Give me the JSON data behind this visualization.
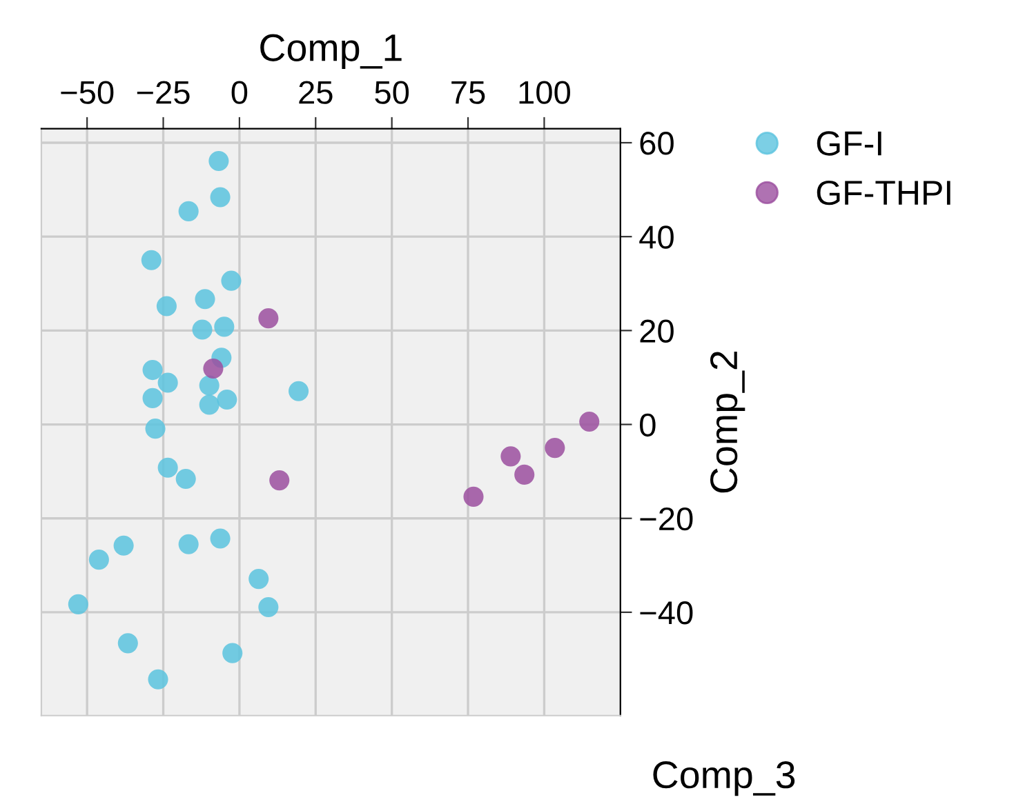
{
  "chart_data": {
    "type": "scatter",
    "xlabel": "Comp_1",
    "ylabel": "Comp_2",
    "annotations": [
      "Comp_3"
    ],
    "xlim": [
      -65,
      125
    ],
    "ylim": [
      -62,
      63
    ],
    "xticks": [
      -50,
      -25,
      0,
      25,
      50,
      75,
      100
    ],
    "yticks": [
      -40,
      -20,
      0,
      20,
      40,
      60
    ],
    "grid": true,
    "legend": "top right",
    "marker": "circle",
    "series": [
      {
        "name": "GF-I",
        "color": "#5bc3de",
        "x": [
          -6.8,
          -6.3,
          -16.7,
          -28.9,
          -2.7,
          -23.9,
          -11.3,
          -12.2,
          -5.0,
          -5.9,
          -28.5,
          -23.5,
          -28.5,
          -9.9,
          -4.1,
          -9.9,
          19.4,
          -27.6,
          -23.5,
          -17.6,
          -38.0,
          -46.1,
          -52.9,
          -16.7,
          -6.3,
          6.3,
          9.5,
          -36.6,
          -2.3,
          -26.7
        ],
        "values": [
          56.1,
          48.4,
          45.4,
          35.0,
          30.6,
          25.2,
          26.7,
          20.2,
          20.8,
          14.2,
          11.6,
          8.9,
          5.6,
          8.3,
          5.3,
          4.2,
          7.1,
          -0.9,
          -9.2,
          -11.6,
          -25.8,
          -28.8,
          -38.3,
          -25.5,
          -24.3,
          -32.9,
          -38.9,
          -46.6,
          -48.7,
          -54.3
        ]
      },
      {
        "name": "GF-THPI",
        "color": "#9b4f9f",
        "x": [
          9.5,
          -8.6,
          13.1,
          114.8,
          103.5,
          89.0,
          93.5,
          76.8
        ],
        "values": [
          22.6,
          11.9,
          -11.9,
          0.6,
          -5.0,
          -6.8,
          -10.7,
          -15.4
        ]
      }
    ]
  }
}
